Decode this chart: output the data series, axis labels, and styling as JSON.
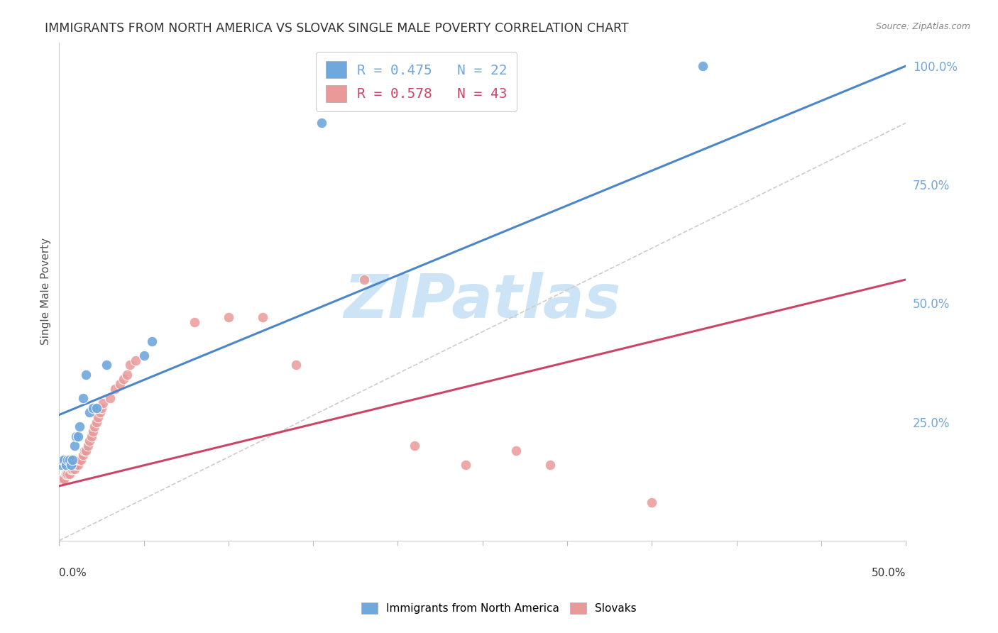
{
  "title": "IMMIGRANTS FROM NORTH AMERICA VS SLOVAK SINGLE MALE POVERTY CORRELATION CHART",
  "source": "Source: ZipAtlas.com",
  "ylabel": "Single Male Poverty",
  "right_ytick_vals": [
    1.0,
    0.75,
    0.5,
    0.25
  ],
  "right_ytick_labels": [
    "100.0%",
    "75.0%",
    "50.0%",
    "25.0%"
  ],
  "legend_blue": "R = 0.475   N = 22",
  "legend_pink": "R = 0.578   N = 43",
  "blue_color": "#6fa8dc",
  "pink_color": "#ea9999",
  "blue_line_color": "#4a86c8",
  "pink_line_color": "#cc4466",
  "blue_scatter_x": [
    0.001,
    0.002,
    0.003,
    0.004,
    0.005,
    0.006,
    0.007,
    0.008,
    0.009,
    0.01,
    0.011,
    0.012,
    0.014,
    0.016,
    0.018,
    0.02,
    0.022,
    0.028,
    0.05,
    0.055,
    0.155,
    0.38
  ],
  "blue_scatter_y": [
    0.16,
    0.17,
    0.17,
    0.16,
    0.17,
    0.17,
    0.16,
    0.17,
    0.2,
    0.22,
    0.22,
    0.24,
    0.3,
    0.35,
    0.27,
    0.28,
    0.28,
    0.37,
    0.39,
    0.42,
    0.88,
    1.0
  ],
  "pink_scatter_x": [
    0.001,
    0.002,
    0.003,
    0.004,
    0.005,
    0.006,
    0.007,
    0.008,
    0.009,
    0.01,
    0.011,
    0.012,
    0.013,
    0.014,
    0.015,
    0.016,
    0.017,
    0.018,
    0.019,
    0.02,
    0.021,
    0.022,
    0.023,
    0.024,
    0.025,
    0.026,
    0.03,
    0.033,
    0.036,
    0.038,
    0.04,
    0.042,
    0.045,
    0.08,
    0.1,
    0.12,
    0.14,
    0.18,
    0.21,
    0.24,
    0.27,
    0.29,
    0.35
  ],
  "pink_scatter_y": [
    0.13,
    0.13,
    0.13,
    0.14,
    0.14,
    0.14,
    0.15,
    0.15,
    0.15,
    0.16,
    0.16,
    0.17,
    0.17,
    0.18,
    0.19,
    0.19,
    0.2,
    0.21,
    0.22,
    0.23,
    0.24,
    0.25,
    0.26,
    0.27,
    0.28,
    0.29,
    0.3,
    0.32,
    0.33,
    0.34,
    0.35,
    0.37,
    0.38,
    0.46,
    0.47,
    0.47,
    0.37,
    0.55,
    0.2,
    0.16,
    0.19,
    0.16,
    0.08
  ],
  "blue_line_x0": 0.0,
  "blue_line_y0": 0.265,
  "blue_line_x1": 0.5,
  "blue_line_y1": 1.0,
  "pink_line_x0": 0.0,
  "pink_line_y0": 0.115,
  "pink_line_x1": 0.5,
  "pink_line_y1": 0.55,
  "dash_line_x0": 0.0,
  "dash_line_y0": 0.0,
  "dash_line_x1": 0.5,
  "dash_line_y1": 0.88,
  "xlim": [
    0.0,
    0.5
  ],
  "ylim": [
    0.0,
    1.05
  ],
  "watermark": "ZIPatlas",
  "watermark_color": "#cce4f5",
  "background_color": "#ffffff",
  "grid_color": "#e8e8e8"
}
